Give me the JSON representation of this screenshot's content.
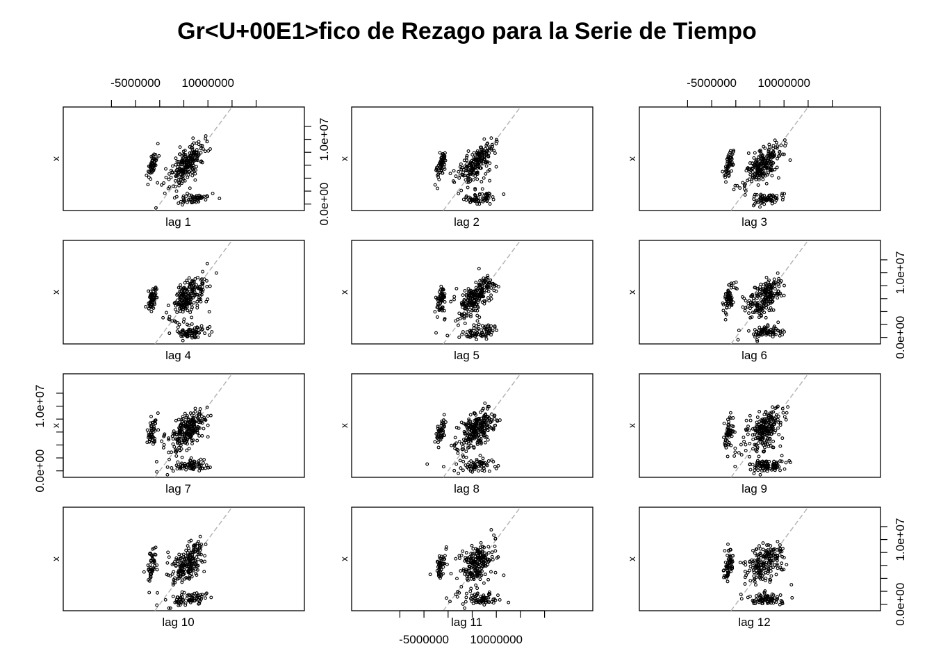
{
  "title": "Gr<U+00E1>fico de Rezago para la Serie de Tiempo",
  "colors": {
    "points": "#000000",
    "diagonal": "#b0b0b0",
    "axes": "#000000",
    "background": "#ffffff"
  },
  "chart_data": {
    "type": "scatter",
    "title": "Gr<U+00E1>fico de Rezago para la Serie de Tiempo",
    "ylabel": "x",
    "panel_labels": [
      "lag 1",
      "lag 2",
      "lag 3",
      "lag 4",
      "lag 5",
      "lag 6",
      "lag 7",
      "lag 8",
      "lag 9",
      "lag 10",
      "lag 11",
      "lag 12"
    ],
    "xlim": [
      -20000000,
      30000000
    ],
    "x_tick_values": [
      -10000000,
      -5000000,
      0,
      5000000,
      10000000,
      15000000,
      20000000
    ],
    "x_tick_labels": [
      "-5000000",
      "10000000"
    ],
    "x_tick_label_values": [
      -5000000,
      10000000
    ],
    "ylim": [
      -1000000,
      15000000
    ],
    "y_tick_values": [
      0,
      2000000,
      4000000,
      6000000,
      8000000,
      10000000,
      12000000
    ],
    "y_tick_labels": [
      "0.0e+00",
      "1.0e+07"
    ],
    "y_tick_label_values": [
      0,
      10000000
    ],
    "diagonal_reference_line": true,
    "grid": false,
    "layout": "4 rows x 3 columns",
    "n_points_per_panel_approx": 450
  }
}
